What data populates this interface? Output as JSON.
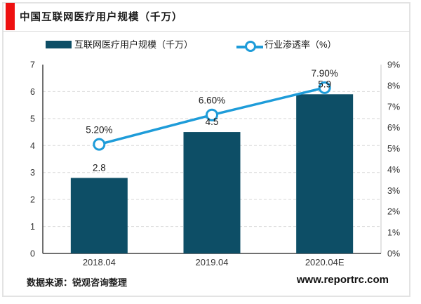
{
  "header": {
    "title": "中国互联网医疗用户规模（千万）"
  },
  "legend": {
    "items": [
      {
        "label": "互联网医疗用户规模（千万）",
        "swatch": "bar"
      },
      {
        "label": "行业渗透率（%）",
        "swatch": "line-marker"
      }
    ],
    "position": "top"
  },
  "chart_data": {
    "type": "bar+line",
    "categories": [
      "2018.04",
      "2019.04",
      "2020.04E"
    ],
    "series": [
      {
        "name": "互联网医疗用户规模（千万）",
        "type": "bar",
        "axis": "left",
        "values": [
          2.8,
          4.5,
          5.9
        ],
        "labels": [
          "2.8",
          "4.5",
          "5.9"
        ]
      },
      {
        "name": "行业渗透率（%）",
        "type": "line",
        "axis": "right",
        "values": [
          5.2,
          6.6,
          7.9
        ],
        "labels": [
          "5.20%",
          "6.60%",
          "7.90%"
        ]
      }
    ],
    "left_axis": {
      "min": 0,
      "max": 7,
      "ticks": [
        "0",
        "1",
        "2",
        "3",
        "4",
        "5",
        "6",
        "7"
      ]
    },
    "right_axis": {
      "min": 0,
      "max": 9,
      "ticks": [
        "0%",
        "1%",
        "2%",
        "3%",
        "4%",
        "5%",
        "6%",
        "7%",
        "8%",
        "9%"
      ]
    },
    "grid": "horizontal-dashed",
    "legend_position": "top"
  },
  "footer": {
    "source": "数据来源：锐观咨询整理",
    "website": "www.reportrc.com"
  },
  "colors": {
    "bar": "#0d4e66",
    "line": "#1e9cd9",
    "accent_red": "#ee1111",
    "grid": "#d9d9d9",
    "axis": "#404040",
    "plot_right_border": "#d0d0d0",
    "border": "#e3e3e3",
    "label_text": "#1a1a1a",
    "tick_text": "#333333"
  }
}
